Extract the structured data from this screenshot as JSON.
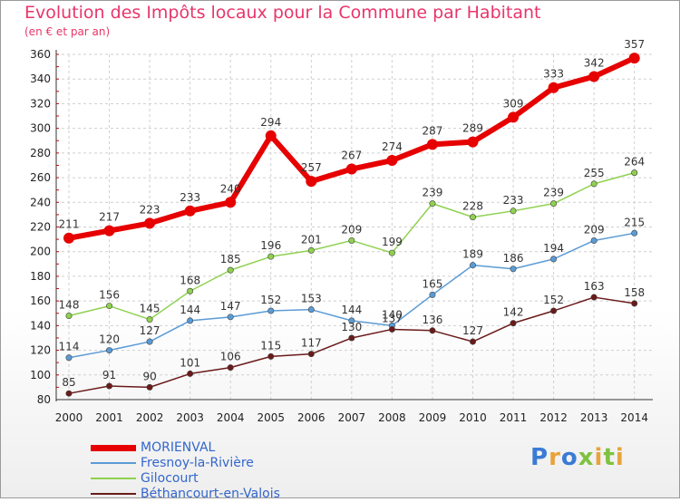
{
  "title": "Evolution des Impôts locaux pour la Commune par Habitant",
  "subtitle": "(en € et par an)",
  "logo": "Proxiti",
  "chart_data": {
    "type": "line",
    "x": [
      "2000",
      "2001",
      "2002",
      "2003",
      "2004",
      "2005",
      "2006",
      "2007",
      "2008",
      "2009",
      "2010",
      "2011",
      "2012",
      "2013",
      "2014"
    ],
    "ylim": [
      80,
      360
    ],
    "yticks": [
      80,
      100,
      120,
      140,
      160,
      180,
      200,
      220,
      240,
      260,
      280,
      300,
      320,
      340,
      360
    ],
    "grid": true,
    "legend_position": "bottom-left",
    "series": [
      {
        "name": "MORIENVAL",
        "color": "#e60000",
        "emphasis": true,
        "values": [
          211,
          217,
          223,
          233,
          240,
          294,
          257,
          267,
          274,
          287,
          289,
          309,
          333,
          342,
          357
        ]
      },
      {
        "name": "Fresnoy-la-Rivière",
        "color": "#5b9bd5",
        "values": [
          114,
          120,
          127,
          144,
          147,
          152,
          153,
          144,
          140,
          165,
          189,
          186,
          194,
          209,
          215
        ]
      },
      {
        "name": "Gilocourt",
        "color": "#8fd14f",
        "values": [
          148,
          156,
          145,
          168,
          185,
          196,
          201,
          209,
          199,
          239,
          228,
          233,
          239,
          255,
          264
        ]
      },
      {
        "name": "Béthancourt-en-Valois",
        "color": "#6b1a1a",
        "values": [
          85,
          91,
          90,
          101,
          106,
          115,
          117,
          130,
          137,
          136,
          127,
          142,
          152,
          163,
          158
        ]
      }
    ]
  }
}
